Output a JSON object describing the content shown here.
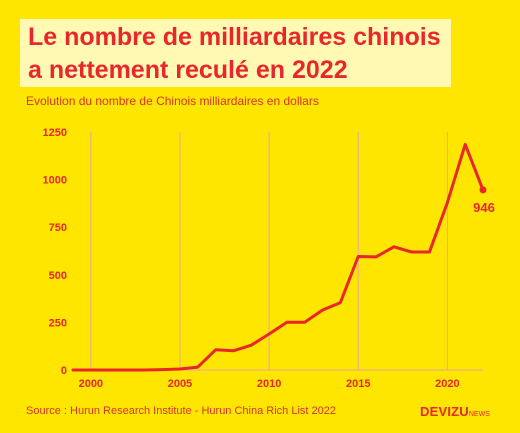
{
  "header": {
    "title_line1": "Le nombre de milliardaires chinois",
    "title_line2": "a nettement reculé en 2022",
    "subtitle": "Evolution du nombre de Chinois milliardaires en dollars"
  },
  "footer": {
    "source": "Source : Hurun Research Institute - Hurun China Rich List 2022",
    "brand": "DEVIZU",
    "brand_suffix": "NEWS"
  },
  "colors": {
    "background": "#ffe600",
    "accent": "#e8262b",
    "grid": "#e7a6a0"
  },
  "chart_data": {
    "type": "line",
    "title": "Le nombre de milliardaires chinois a nettement reculé en 2022",
    "subtitle": "Evolution du nombre de Chinois milliardaires en dollars",
    "xlabel": "",
    "ylabel": "",
    "xlim": [
      1999,
      2022
    ],
    "ylim": [
      0,
      1250
    ],
    "x_ticks": [
      2000,
      2005,
      2010,
      2015,
      2020
    ],
    "y_ticks": [
      0,
      250,
      500,
      750,
      1000,
      1250
    ],
    "grid": "vertical",
    "series": [
      {
        "x": [
          1999,
          2000,
          2001,
          2002,
          2003,
          2004,
          2005,
          2006,
          2007,
          2008,
          2009,
          2010,
          2011,
          2012,
          2013,
          2014,
          2015,
          2016,
          2017,
          2018,
          2019,
          2020,
          2021,
          2022
        ],
        "values": [
          0,
          0,
          0,
          0,
          0,
          2,
          5,
          15,
          106,
          101,
          130,
          189,
          251,
          251,
          315,
          354,
          596,
          594,
          647,
          620,
          620,
          878,
          1185,
          946
        ]
      }
    ],
    "annotations": [
      {
        "x": 2022,
        "y": 946,
        "text": "946"
      }
    ]
  }
}
